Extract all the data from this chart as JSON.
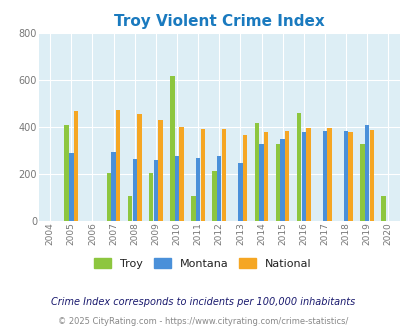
{
  "title": "Troy Violent Crime Index",
  "title_color": "#1a7abf",
  "years": [
    2004,
    2005,
    2006,
    2007,
    2008,
    2009,
    2010,
    2011,
    2012,
    2013,
    2014,
    2015,
    2016,
    2017,
    2018,
    2019,
    2020
  ],
  "troy": [
    null,
    408,
    null,
    205,
    108,
    205,
    615,
    108,
    215,
    null,
    418,
    328,
    460,
    null,
    null,
    328,
    108
  ],
  "montana": [
    null,
    290,
    null,
    295,
    262,
    258,
    278,
    270,
    278,
    245,
    328,
    348,
    378,
    383,
    383,
    408,
    null
  ],
  "national": [
    null,
    470,
    null,
    472,
    455,
    430,
    400,
    390,
    390,
    365,
    378,
    383,
    395,
    398,
    380,
    388,
    null
  ],
  "troy_color": "#8dc63f",
  "montana_color": "#4a90d9",
  "national_color": "#f5a623",
  "background_color": "#ddeef5",
  "ylim": [
    0,
    800
  ],
  "yticks": [
    0,
    200,
    400,
    600,
    800
  ],
  "footnote1": "Crime Index corresponds to incidents per 100,000 inhabitants",
  "footnote2": "© 2025 CityRating.com - https://www.cityrating.com/crime-statistics/",
  "legend_labels": [
    "Troy",
    "Montana",
    "National"
  ]
}
